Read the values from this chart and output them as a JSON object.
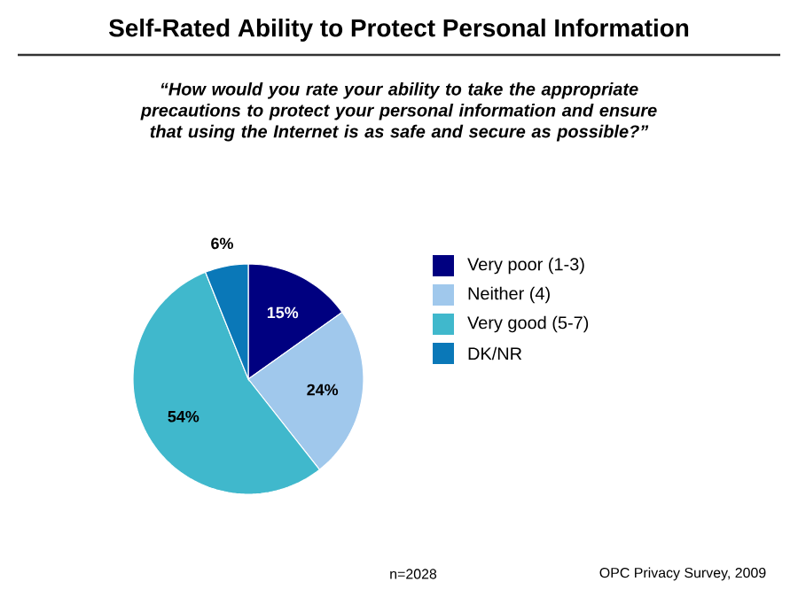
{
  "chart_data": {
    "type": "pie",
    "title": "Self-Rated Ability to Protect Personal Information",
    "subtitle": "“How would you rate your ability to take the appropriate precautions to protect your personal information and ensure that using the Internet is as safe and secure as possible?”",
    "categories": [
      "Very poor (1-3)",
      "Neither (4)",
      "Very good (5-7)",
      "DK/NR"
    ],
    "values": [
      15,
      24,
      54,
      6
    ],
    "value_labels": [
      "15%",
      "24%",
      "54%",
      "6%"
    ],
    "colors": [
      "#000080",
      "#a0c8ec",
      "#40b8cc",
      "#0a78b8"
    ],
    "legend": "right",
    "annotations": [
      "n=2028",
      "OPC Privacy Survey, 2009"
    ]
  }
}
